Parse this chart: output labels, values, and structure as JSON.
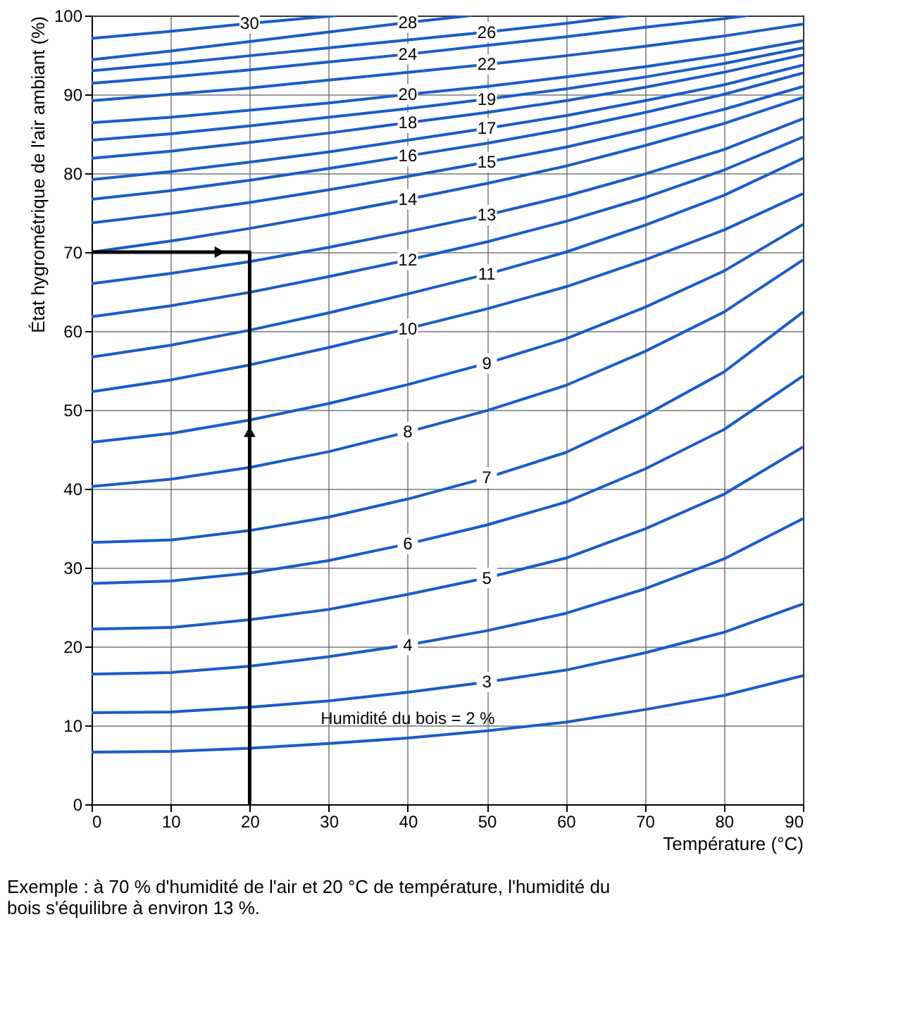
{
  "chart_data": {
    "type": "line",
    "xlabel": "Température (°C)",
    "ylabel": "État hygrométrique de l'air ambiant (%)",
    "x": [
      0,
      10,
      20,
      30,
      40,
      50,
      60,
      70,
      80,
      90
    ],
    "series": [
      {
        "name": "Humidité du bois = 2 %",
        "color": "#1a5cc8",
        "values": [
          6.6,
          6.7,
          7.1,
          7.7,
          8.4,
          9.3,
          10.4,
          12.0,
          13.8,
          16.3
        ]
      },
      {
        "name": "3",
        "color": "#1a5cc8",
        "values": [
          11.6,
          11.7,
          12.3,
          13.1,
          14.2,
          15.5,
          17.0,
          19.2,
          21.8,
          25.4
        ]
      },
      {
        "name": "4",
        "color": "#1a5cc8",
        "values": [
          16.5,
          16.7,
          17.5,
          18.7,
          20.2,
          22.0,
          24.2,
          27.3,
          31.1,
          36.2
        ]
      },
      {
        "name": "5",
        "color": "#1a5cc8",
        "values": [
          22.2,
          22.4,
          23.4,
          24.7,
          26.6,
          28.7,
          31.2,
          34.9,
          39.3,
          45.3
        ]
      },
      {
        "name": "6",
        "color": "#1a5cc8",
        "values": [
          28.0,
          28.3,
          29.3,
          30.9,
          33.0,
          35.4,
          38.3,
          42.5,
          47.5,
          54.3
        ]
      },
      {
        "name": "7",
        "color": "#1a5cc8",
        "values": [
          33.2,
          33.5,
          34.7,
          36.4,
          38.7,
          41.4,
          44.6,
          49.3,
          54.8,
          62.4
        ]
      },
      {
        "name": "8",
        "color": "#1a5cc8",
        "values": [
          40.3,
          41.2,
          42.7,
          44.7,
          47.2,
          49.9,
          53.1,
          57.4,
          62.4,
          69.0
        ]
      },
      {
        "name": "9",
        "color": "#1a5cc8",
        "values": [
          45.9,
          47.0,
          48.7,
          50.8,
          53.2,
          55.9,
          59.0,
          63.0,
          67.6,
          73.5
        ]
      },
      {
        "name": "10",
        "color": "#1a5cc8",
        "values": [
          52.3,
          53.8,
          55.7,
          57.9,
          60.3,
          62.8,
          65.6,
          69.0,
          72.8,
          77.4
        ]
      },
      {
        "name": "11",
        "color": "#1a5cc8",
        "values": [
          56.7,
          58.2,
          60.1,
          62.3,
          64.7,
          67.2,
          70.0,
          73.4,
          77.2,
          81.9
        ]
      },
      {
        "name": "12",
        "color": "#1a5cc8",
        "values": [
          61.8,
          63.2,
          64.9,
          66.9,
          69.0,
          71.3,
          73.9,
          76.9,
          80.4,
          84.6
        ]
      },
      {
        "name": "13",
        "color": "#1a5cc8",
        "values": [
          66.0,
          67.3,
          68.8,
          70.6,
          72.6,
          74.7,
          77.1,
          79.9,
          83.0,
          86.9
        ]
      },
      {
        "name": "14",
        "color": "#1a5cc8",
        "values": [
          70.0,
          71.4,
          73.0,
          74.8,
          76.7,
          78.7,
          80.9,
          83.5,
          86.3,
          89.6
        ]
      },
      {
        "name": "15",
        "color": "#1a5cc8",
        "values": [
          73.7,
          74.9,
          76.3,
          77.9,
          79.6,
          81.4,
          83.3,
          85.6,
          88.1,
          91.0
        ]
      },
      {
        "name": "16",
        "color": "#1a5cc8",
        "values": [
          76.7,
          77.8,
          79.1,
          80.6,
          82.2,
          83.8,
          85.6,
          87.7,
          90.0,
          92.7
        ]
      },
      {
        "name": "17",
        "color": "#1a5cc8",
        "values": [
          79.2,
          80.2,
          81.4,
          82.7,
          84.2,
          85.7,
          87.3,
          89.2,
          91.2,
          93.7
        ]
      },
      {
        "name": "18",
        "color": "#1a5cc8",
        "values": [
          81.9,
          82.8,
          83.9,
          85.1,
          86.4,
          87.7,
          89.2,
          90.9,
          92.8,
          95.0
        ]
      },
      {
        "name": "19",
        "color": "#1a5cc8",
        "values": [
          84.2,
          85.0,
          86.0,
          87.1,
          88.2,
          89.4,
          90.7,
          92.2,
          93.9,
          95.9
        ]
      },
      {
        "name": "20",
        "color": "#1a5cc8",
        "values": [
          86.4,
          87.1,
          88.0,
          88.9,
          90.0,
          91.0,
          92.2,
          93.5,
          95.0,
          96.8
        ]
      },
      {
        "name": "22",
        "color": "#1a5cc8",
        "values": [
          89.2,
          90.0,
          90.8,
          91.8,
          92.8,
          93.8,
          94.9,
          96.1,
          97.4,
          98.9
        ]
      },
      {
        "name": "24",
        "color": "#1a5cc8",
        "x": [
          0,
          10,
          20,
          30,
          40,
          50,
          60,
          70,
          80,
          83
        ],
        "values": [
          91.4,
          92.2,
          93.1,
          94.1,
          95.1,
          96.2,
          97.3,
          98.5,
          99.6,
          100
        ]
      },
      {
        "name": "26",
        "color": "#1a5cc8",
        "x": [
          0,
          10,
          20,
          30,
          40,
          50,
          60,
          68
        ],
        "values": [
          93.0,
          93.9,
          94.9,
          95.9,
          96.9,
          97.9,
          99.0,
          100
        ]
      },
      {
        "name": "28",
        "color": "#1a5cc8",
        "x": [
          0,
          10,
          20,
          30,
          40,
          48
        ],
        "values": [
          94.4,
          95.5,
          96.7,
          97.9,
          99.1,
          100
        ]
      },
      {
        "name": "30",
        "color": "#1a5cc8",
        "x": [
          0,
          10,
          20,
          31
        ],
        "values": [
          97.1,
          98.0,
          99.0,
          100
        ]
      },
      {
        "type": "line",
        "color": "#000000",
        "x": [
          0,
          20,
          20
        ],
        "values": [
          70,
          70,
          0
        ]
      },
      {
        "type": "scatter",
        "color": "#000000",
        "marker": "triangle",
        "x": [
          16,
          20
        ],
        "values": [
          70,
          47
        ]
      }
    ],
    "xlim": [
      0,
      90
    ],
    "xticks": [
      0,
      10,
      20,
      30,
      40,
      50,
      60,
      70,
      80,
      90
    ],
    "ylim": [
      0,
      100
    ],
    "yticks": [
      0,
      10,
      20,
      30,
      40,
      50,
      60,
      70,
      80,
      90,
      100
    ],
    "grid": true,
    "marker": "none",
    "line_style": "solid",
    "annotations": [
      "Exemple : à 70 % d'humidité de l'air et 20 °C de température, l'humidité du bois s'équilibre à environ 13 %."
    ]
  }
}
